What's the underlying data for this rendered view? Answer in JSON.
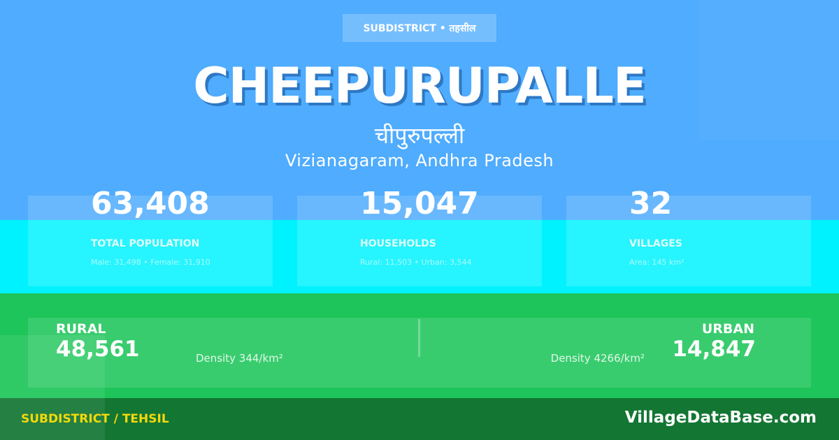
{
  "badge": "SUBDISTRICT • तहसील",
  "title": "CHEEPURUPALLE",
  "title_hindi": "चीपुरुपल्ली",
  "location": "Vizianagaram, Andhra Pradesh",
  "stats": [
    {
      "value": "63,408",
      "label": "TOTAL POPULATION",
      "sub": "Male: 31,498 • Female: 31,910"
    },
    {
      "value": "15,047",
      "label": "HOUSEHOLDS",
      "sub": "Rural: 11,503 • Urban: 3,544"
    },
    {
      "value": "32",
      "label": "VILLAGES",
      "sub": "Area: 145 km²"
    }
  ],
  "rural": {
    "label": "RURAL",
    "value": "48,561",
    "density": "Density 344/km²"
  },
  "urban": {
    "label": "URBAN",
    "value": "14,847",
    "density": "Density 4266/km²"
  },
  "footer": {
    "left": "SUBDISTRICT / TEHSIL",
    "right": "VillageDataBase.com"
  },
  "colors": {
    "top": "#4facfe",
    "middle": "#00f2fe",
    "green": "#1ec55a",
    "footer": "#137633",
    "footer_accent": "#f5d90a"
  }
}
